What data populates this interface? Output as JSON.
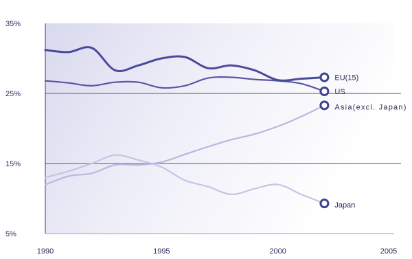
{
  "chart_data": {
    "type": "line",
    "title": "",
    "xlabel": "",
    "ylabel": "",
    "xlim": [
      1990,
      2005
    ],
    "ylim": [
      5,
      35
    ],
    "x_ticks": [
      {
        "value": 1990,
        "label": "1990"
      },
      {
        "value": 1995,
        "label": "1995"
      },
      {
        "value": 2000,
        "label": "2000"
      },
      {
        "value": 2005,
        "label": "2005"
      }
    ],
    "y_ticks": [
      {
        "value": 35,
        "label": "35%"
      },
      {
        "value": 25,
        "label": "25%"
      },
      {
        "value": 15,
        "label": "15%"
      },
      {
        "value": 5,
        "label": "5%"
      }
    ],
    "reference_lines": [
      25,
      15
    ],
    "grid": false,
    "legend": "end-of-line labels",
    "series": [
      {
        "key": "eu",
        "name": "EU(15)",
        "color": "#4a4a9c",
        "stroke": 3,
        "x": [
          1990,
          1991,
          1992,
          1993,
          1994,
          1995,
          1996,
          1997,
          1998,
          1999,
          2000,
          2001,
          2002
        ],
        "y": [
          31.2,
          30.9,
          31.5,
          28.3,
          29.0,
          30.0,
          30.2,
          28.6,
          29.0,
          28.3,
          26.9,
          27.1,
          27.3
        ]
      },
      {
        "key": "us",
        "name": "US",
        "color": "#5656a6",
        "stroke": 2.2,
        "x": [
          1990,
          1991,
          1992,
          1993,
          1994,
          1995,
          1996,
          1997,
          1998,
          1999,
          2000,
          2001,
          2002
        ],
        "y": [
          26.8,
          26.5,
          26.1,
          26.6,
          26.6,
          25.8,
          26.1,
          27.2,
          27.3,
          27.0,
          26.8,
          26.4,
          25.3
        ]
      },
      {
        "key": "asia",
        "name": "Asia(excl. Japan)",
        "color": "#b8b8e0",
        "stroke": 2.2,
        "x": [
          1990,
          1991,
          1992,
          1993,
          1994,
          1995,
          1996,
          1997,
          1998,
          1999,
          2000,
          2001,
          2002
        ],
        "y": [
          12.0,
          13.2,
          13.6,
          14.8,
          14.8,
          15.2,
          16.3,
          17.4,
          18.4,
          19.2,
          20.3,
          21.7,
          23.3
        ]
      },
      {
        "key": "japan",
        "name": "Japan",
        "color": "#c4c4e6",
        "stroke": 2.2,
        "x": [
          1990,
          1991,
          1992,
          1993,
          1994,
          1995,
          1996,
          1997,
          1998,
          1999,
          2000,
          2001,
          2002
        ],
        "y": [
          13.0,
          13.9,
          15.0,
          16.2,
          15.5,
          14.5,
          12.6,
          11.7,
          10.6,
          11.4,
          12.0,
          10.6,
          9.3
        ]
      }
    ]
  }
}
